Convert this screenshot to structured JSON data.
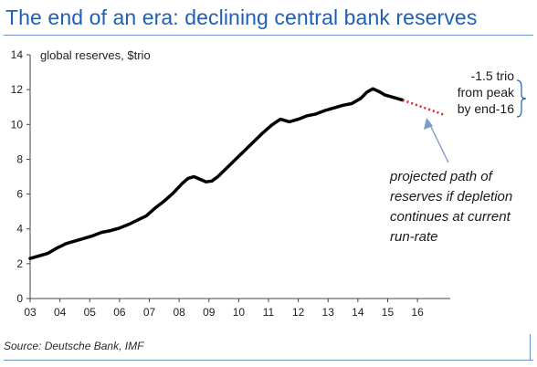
{
  "title": "The end of an era: declining central bank reserves",
  "source": "Source: Deutsche Bank, IMF",
  "accent_color": "#1f5fb4",
  "chart_data": {
    "type": "line",
    "ylabel": "global reserves, $trio",
    "ylim": [
      0,
      14
    ],
    "yticks": [
      0,
      2,
      4,
      6,
      8,
      10,
      12,
      14
    ],
    "xlim": [
      2003.0,
      2017.1
    ],
    "xticks": [
      "03",
      "04",
      "05",
      "06",
      "07",
      "08",
      "09",
      "10",
      "11",
      "12",
      "13",
      "14",
      "15",
      "16"
    ],
    "grid": false,
    "series": [
      {
        "style": "solid-black",
        "x": [
          2003.0,
          2003.3,
          2003.6,
          2003.9,
          2004.2,
          2004.5,
          2004.8,
          2005.1,
          2005.4,
          2005.7,
          2006.0,
          2006.3,
          2006.6,
          2006.9,
          2007.2,
          2007.5,
          2007.8,
          2008.1,
          2008.3,
          2008.5,
          2008.7,
          2008.9,
          2009.1,
          2009.3,
          2009.6,
          2009.9,
          2010.2,
          2010.5,
          2010.8,
          2011.1,
          2011.4,
          2011.7,
          2012.0,
          2012.3,
          2012.6,
          2012.9,
          2013.2,
          2013.5,
          2013.8,
          2014.1,
          2014.3,
          2014.5,
          2014.7,
          2014.9,
          2015.1,
          2015.3,
          2015.5
        ],
        "y": [
          2.3,
          2.45,
          2.6,
          2.9,
          3.15,
          3.3,
          3.45,
          3.6,
          3.8,
          3.9,
          4.05,
          4.25,
          4.5,
          4.75,
          5.2,
          5.6,
          6.05,
          6.6,
          6.9,
          7.0,
          6.85,
          6.7,
          6.75,
          7.0,
          7.5,
          8.0,
          8.5,
          9.0,
          9.5,
          9.95,
          10.3,
          10.15,
          10.3,
          10.5,
          10.6,
          10.8,
          10.95,
          11.1,
          11.2,
          11.5,
          11.85,
          12.05,
          11.9,
          11.7,
          11.6,
          11.5,
          11.4
        ],
        "width": 3.5
      },
      {
        "style": "dotted-red",
        "x": [
          2015.5,
          2016.9
        ],
        "y": [
          11.4,
          10.55
        ],
        "width": 2.5,
        "color": "#e02020"
      }
    ],
    "annotations": {
      "peak_note": [
        "-1.5 trio",
        "from peak",
        "by end-16"
      ],
      "projection_note": [
        "projected path of",
        "reserves  if depletion",
        "continues at current",
        "run-rate"
      ]
    }
  }
}
